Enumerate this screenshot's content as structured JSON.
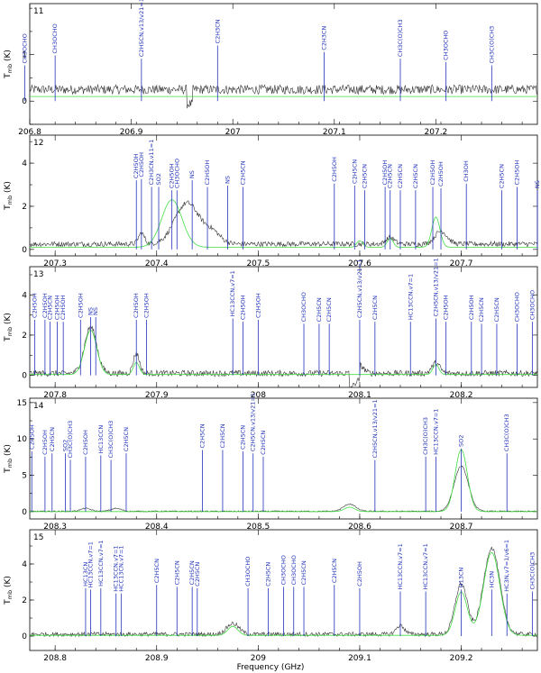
{
  "xlabel": "Frequency (GHz)",
  "ylabel": "T",
  "ylabel_sub": "mb",
  "ylabel_unit": " (K)",
  "colors": {
    "observed": "#333333",
    "model": "#44dd44",
    "labels": "#2233bb"
  },
  "chart_data": [
    {
      "type": "line",
      "panel": "11",
      "xlim": [
        208.775,
        209.275
      ],
      "ylim": [
        -0.5,
        2.1
      ],
      "xticks": [
        {
          "v": 206.8,
          "label": "206.8"
        },
        {
          "v": 206.9,
          "label": "206.9"
        },
        {
          "v": 207.0,
          "label": "207"
        },
        {
          "v": 207.1,
          "label": "207.1"
        },
        {
          "v": 207.2,
          "label": "207.2"
        }
      ],
      "xtick_offset": 1.975,
      "yticks": [
        0,
        1
      ],
      "noise": 0.1,
      "base": 0.25,
      "obs_peaks": [
        [
          206.93,
          0.35,
          0.01
        ],
        [
          207.09,
          0.3,
          0.015
        ],
        [
          207.21,
          0.35,
          0.01
        ]
      ],
      "model_peaks": [
        [
          206.94,
          0.9,
          0.006
        ]
      ],
      "dip": [
        206.955,
        206.96
      ],
      "lines": [
        {
          "x": 206.795,
          "label": "CH3OCHO",
          "len": 0.45
        },
        {
          "x": 206.825,
          "label": "CH3OCHO",
          "len": 0.6
        },
        {
          "x": 206.91,
          "label": "C2H5CN,v13/v21=1",
          "len": 0.55
        },
        {
          "x": 206.985,
          "label": "C2H3CN",
          "len": 0.75
        },
        {
          "x": 207.09,
          "label": "C2H3CN",
          "len": 0.65
        },
        {
          "x": 207.165,
          "label": "CH3C(O)CH3",
          "len": 0.55
        },
        {
          "x": 207.21,
          "label": "CH3OCHO",
          "len": 0.5
        },
        {
          "x": 207.255,
          "label": "CH3C(O)CH3",
          "len": 0.45
        }
      ]
    },
    {
      "type": "line",
      "panel": "12",
      "xlim": [
        207.275,
        207.775
      ],
      "ylim": [
        -0.3,
        5.3
      ],
      "xticks": [
        {
          "v": 207.3,
          "label": "207.3"
        },
        {
          "v": 207.4,
          "label": "207.4"
        },
        {
          "v": 207.5,
          "label": "207.5"
        },
        {
          "v": 207.6,
          "label": "207.6"
        },
        {
          "v": 207.7,
          "label": "207.7"
        }
      ],
      "xtick_offset": 0,
      "yticks": [
        0,
        2,
        4
      ],
      "noise": 0.12,
      "base": 0.25,
      "obs_peaks": [
        [
          207.385,
          0.5,
          0.003
        ],
        [
          207.43,
          1.9,
          0.012
        ],
        [
          207.455,
          0.5,
          0.008
        ],
        [
          207.68,
          0.6,
          0.006
        ],
        [
          207.63,
          0.3,
          0.004
        ]
      ],
      "model_peaks": [
        [
          207.415,
          2.2,
          0.01
        ],
        [
          207.675,
          1.4,
          0.004
        ],
        [
          207.6,
          0.3,
          0.003
        ],
        [
          207.63,
          0.4,
          0.003
        ]
      ],
      "dip": null,
      "lines": [
        {
          "x": 207.38,
          "label": "C2H5OH",
          "len": 0.7
        },
        {
          "x": 207.385,
          "label": "C2H5OH",
          "len": 0.72
        },
        {
          "x": 207.395,
          "label": "C2H3CN,v11=1",
          "len": 0.6
        },
        {
          "x": 207.402,
          "label": "SO2",
          "len": 0.6
        },
        {
          "x": 207.415,
          "label": "C2H5OH",
          "len": 0.55
        },
        {
          "x": 207.42,
          "label": "CH3OCHO",
          "len": 0.55
        },
        {
          "x": 207.435,
          "label": "NS",
          "len": 0.7
        },
        {
          "x": 207.45,
          "label": "C2H5OH",
          "len": 0.6
        },
        {
          "x": 207.47,
          "label": "NS",
          "len": 0.62
        },
        {
          "x": 207.485,
          "label": "C2H5CN",
          "len": 0.6
        },
        {
          "x": 207.575,
          "label": "C2H5OH",
          "len": 0.65
        },
        {
          "x": 207.595,
          "label": "C2H5CN",
          "len": 0.62
        },
        {
          "x": 207.605,
          "label": "C2H5CN",
          "len": 0.55
        },
        {
          "x": 207.625,
          "label": "C2H5OH",
          "len": 0.6
        },
        {
          "x": 207.63,
          "label": "C2H5CN",
          "len": 0.55
        },
        {
          "x": 207.64,
          "label": "C2H5CN",
          "len": 0.55
        },
        {
          "x": 207.655,
          "label": "C2H5CN",
          "len": 0.55
        },
        {
          "x": 207.672,
          "label": "C2H5OH",
          "len": 0.6
        },
        {
          "x": 207.68,
          "label": "C2H5OH",
          "len": 0.58
        },
        {
          "x": 207.705,
          "label": "CH3OH",
          "len": 0.65
        },
        {
          "x": 207.74,
          "label": "C2H5CN",
          "len": 0.55
        },
        {
          "x": 207.755,
          "label": "C2H5OH",
          "len": 0.6
        },
        {
          "x": 207.775,
          "label": "NS",
          "len": 0.55
        }
      ]
    },
    {
      "type": "line",
      "panel": "13",
      "xlim": [
        207.775,
        208.275
      ],
      "ylim": [
        -0.6,
        5.4
      ],
      "xticks": [
        {
          "v": 207.8,
          "label": "207.8"
        },
        {
          "v": 207.9,
          "label": "207.9"
        },
        {
          "v": 208.0,
          "label": "208"
        },
        {
          "v": 208.1,
          "label": "208.1"
        },
        {
          "v": 208.2,
          "label": "208.2"
        }
      ],
      "xtick_offset": 0,
      "yticks": [
        0,
        2,
        4
      ],
      "noise": 0.15,
      "base": 0.1,
      "obs_peaks": [
        [
          207.835,
          2.3,
          0.006
        ],
        [
          207.88,
          1.0,
          0.003
        ],
        [
          208.1,
          0.4,
          0.004
        ],
        [
          208.175,
          0.5,
          0.004
        ]
      ],
      "model_peaks": [
        [
          207.835,
          2.2,
          0.006
        ],
        [
          207.88,
          0.6,
          0.003
        ],
        [
          208.175,
          0.5,
          0.003
        ]
      ],
      "dip": [
        208.09,
        208.1
      ],
      "lines": [
        {
          "x": 207.78,
          "label": "C2H5OH",
          "len": 0.58
        },
        {
          "x": 207.79,
          "label": "C2H5OH",
          "len": 0.58
        },
        {
          "x": 207.795,
          "label": "C2H5CN",
          "len": 0.55
        },
        {
          "x": 207.802,
          "label": "C2H5OH",
          "len": 0.55
        },
        {
          "x": 207.808,
          "label": "C2H5OH",
          "len": 0.55
        },
        {
          "x": 207.825,
          "label": "C2H5OH",
          "len": 0.58
        },
        {
          "x": 207.835,
          "label": "NS",
          "len": 0.62
        },
        {
          "x": 207.84,
          "label": "NS",
          "len": 0.62
        },
        {
          "x": 207.88,
          "label": "C2H5OH",
          "len": 0.58
        },
        {
          "x": 207.89,
          "label": "C2H5OH",
          "len": 0.58
        },
        {
          "x": 207.975,
          "label": "HC13CCN,v7=1",
          "len": 0.6
        },
        {
          "x": 207.985,
          "label": "C2H5OH",
          "len": 0.55
        },
        {
          "x": 208.0,
          "label": "C2H5OH",
          "len": 0.58
        },
        {
          "x": 208.045,
          "label": "CH3OCHO",
          "len": 0.52
        },
        {
          "x": 208.06,
          "label": "C2H5CN",
          "len": 0.52
        },
        {
          "x": 208.07,
          "label": "C2H5CN",
          "len": 0.52
        },
        {
          "x": 208.1,
          "label": "C2H5CN,v13/v21=1",
          "len": 0.58
        },
        {
          "x": 208.115,
          "label": "C2H5CN",
          "len": 0.55
        },
        {
          "x": 208.15,
          "label": "HC13CCN,v7=1",
          "len": 0.55
        },
        {
          "x": 208.175,
          "label": "C2H5CN,v13/v21=1",
          "len": 0.6
        },
        {
          "x": 208.185,
          "label": "C2H5OH",
          "len": 0.55
        },
        {
          "x": 208.21,
          "label": "C2H5OH",
          "len": 0.55
        },
        {
          "x": 208.22,
          "label": "C2H5CN",
          "len": 0.52
        },
        {
          "x": 208.235,
          "label": "C2H5CN",
          "len": 0.52
        },
        {
          "x": 208.255,
          "label": "CH3OCHO",
          "len": 0.52
        },
        {
          "x": 208.27,
          "label": "CH3OCHO",
          "len": 0.55
        }
      ]
    },
    {
      "type": "line",
      "panel": "14",
      "xlim": [
        208.275,
        208.775
      ],
      "ylim": [
        -1,
        15.6
      ],
      "xticks": [
        {
          "v": 208.3,
          "label": "208.3"
        },
        {
          "v": 208.4,
          "label": "208.4"
        },
        {
          "v": 208.5,
          "label": "208.5"
        },
        {
          "v": 208.6,
          "label": "208.6"
        },
        {
          "v": 208.7,
          "label": "208.7"
        }
      ],
      "xtick_offset": 0,
      "yticks": [
        0,
        5,
        10,
        15
      ],
      "noise": 0.08,
      "base": 0.05,
      "obs_peaks": [
        [
          208.59,
          1.0,
          0.006
        ],
        [
          208.7,
          6.2,
          0.007
        ],
        [
          208.33,
          0.4,
          0.005
        ],
        [
          208.36,
          0.4,
          0.005
        ]
      ],
      "model_peaks": [
        [
          208.7,
          8.5,
          0.006
        ],
        [
          208.59,
          0.6,
          0.005
        ]
      ],
      "dip": null,
      "lines": [
        {
          "x": 208.277,
          "label": "C2H5OH",
          "len": 0.58
        },
        {
          "x": 208.29,
          "label": "C2H5OH",
          "len": 0.5
        },
        {
          "x": 208.297,
          "label": "C2H5CN",
          "len": 0.55
        },
        {
          "x": 208.31,
          "label": "SO2",
          "len": 0.55
        },
        {
          "x": 208.315,
          "label": "CH3C(O)CH3",
          "len": 0.45
        },
        {
          "x": 208.33,
          "label": "C2H5OH",
          "len": 0.5
        },
        {
          "x": 208.345,
          "label": "HC13CCN",
          "len": 0.52
        },
        {
          "x": 208.355,
          "label": "CH3C(O)CH3",
          "len": 0.45
        },
        {
          "x": 208.37,
          "label": "C2H5CN",
          "len": 0.55
        },
        {
          "x": 208.445,
          "label": "C2H5CN",
          "len": 0.6
        },
        {
          "x": 208.465,
          "label": "C2H5CN",
          "len": 0.6
        },
        {
          "x": 208.485,
          "label": "C2H5CN",
          "len": 0.58
        },
        {
          "x": 208.495,
          "label": "C2H5CN,v13/v21=1",
          "len": 0.55
        },
        {
          "x": 208.505,
          "label": "C2H5CN",
          "len": 0.5
        },
        {
          "x": 208.615,
          "label": "C2H5CN,v13/v21=1",
          "len": 0.45
        },
        {
          "x": 208.665,
          "label": "CH3C(O)CH3",
          "len": 0.5
        },
        {
          "x": 208.675,
          "label": "HC13CCN,v7=1",
          "len": 0.5
        },
        {
          "x": 208.7,
          "label": "SO2",
          "len": 0.62
        },
        {
          "x": 208.745,
          "label": "CH3C(O)CH3",
          "len": 0.55
        }
      ]
    },
    {
      "type": "line",
      "panel": "15",
      "xlim": [
        208.775,
        209.275
      ],
      "ylim": [
        -0.8,
        5.9
      ],
      "xticks": [
        {
          "v": 208.8,
          "label": "208.8"
        },
        {
          "v": 208.9,
          "label": "208.9"
        },
        {
          "v": 209.0,
          "label": "209"
        },
        {
          "v": 209.1,
          "label": "209.1"
        },
        {
          "v": 209.2,
          "label": "209.2"
        }
      ],
      "xtick_offset": 0,
      "yticks": [
        0,
        2,
        4
      ],
      "noise": 0.12,
      "base": 0.1,
      "obs_peaks": [
        [
          208.975,
          0.6,
          0.006
        ],
        [
          209.2,
          2.8,
          0.006
        ],
        [
          209.23,
          4.8,
          0.008
        ],
        [
          209.14,
          0.5,
          0.004
        ]
      ],
      "model_peaks": [
        [
          209.2,
          2.4,
          0.006
        ],
        [
          209.23,
          4.6,
          0.008
        ],
        [
          208.975,
          0.5,
          0.005
        ]
      ],
      "dip": null,
      "lines": [
        {
          "x": 208.83,
          "label": "HC13CN",
          "len": 0.5
        },
        {
          "x": 208.835,
          "label": "HC13CCN,v7=1",
          "len": 0.48
        },
        {
          "x": 208.845,
          "label": "HC13CCN,v7=1",
          "len": 0.5
        },
        {
          "x": 208.86,
          "label": "HC13CCN,v7=1",
          "len": 0.42
        },
        {
          "x": 208.865,
          "label": "HCC13CN,v7=1",
          "len": 0.42
        },
        {
          "x": 208.9,
          "label": "C2H5CN",
          "len": 0.55
        },
        {
          "x": 208.92,
          "label": "C2H5CN",
          "len": 0.52
        },
        {
          "x": 208.935,
          "label": "C2H5CN",
          "len": 0.52
        },
        {
          "x": 208.94,
          "label": "C2H5CN",
          "len": 0.5
        },
        {
          "x": 208.99,
          "label": "CH3OCHO",
          "len": 0.5
        },
        {
          "x": 209.01,
          "label": "C2H5CN",
          "len": 0.5
        },
        {
          "x": 209.025,
          "label": "CH3OCHO",
          "len": 0.52
        },
        {
          "x": 209.035,
          "label": "CH3OCHO",
          "len": 0.52
        },
        {
          "x": 209.045,
          "label": "C2H5CN",
          "len": 0.52
        },
        {
          "x": 209.075,
          "label": "C2H5CN",
          "len": 0.55
        },
        {
          "x": 209.1,
          "label": "C2H5OH",
          "len": 0.5
        },
        {
          "x": 209.14,
          "label": "HC13CCN,v7=1",
          "len": 0.45
        },
        {
          "x": 209.165,
          "label": "HC13CCN,v7=1",
          "len": 0.45
        },
        {
          "x": 209.2,
          "label": "H13CN",
          "len": 0.48
        },
        {
          "x": 209.23,
          "label": "HC3N",
          "len": 0.48
        },
        {
          "x": 209.245,
          "label": "HC3N,v7=1/v6=1",
          "len": 0.42
        },
        {
          "x": 209.27,
          "label": "CH3C(O)CH3",
          "len": 0.45
        }
      ]
    }
  ]
}
